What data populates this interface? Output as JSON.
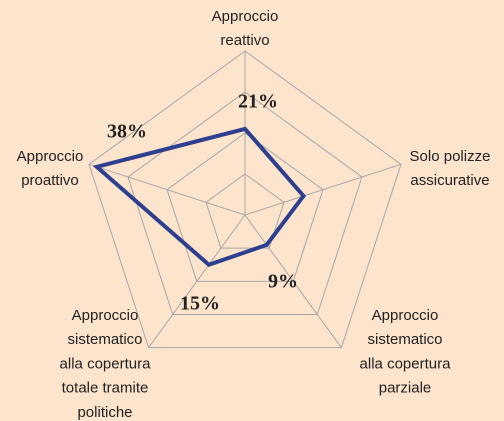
{
  "chart_data": {
    "type": "radar",
    "categories": [
      [
        "Approccio",
        "reattivo"
      ],
      [
        "Solo polizze",
        "assicurative"
      ],
      [
        "Approccio",
        "sistematico",
        "alla copertura",
        "parziale"
      ],
      [
        "Approccio",
        "sistematico",
        "alla copertura",
        "totale tramite",
        "politiche"
      ],
      [
        "Approccio",
        "proattivo"
      ]
    ],
    "values": [
      21,
      15,
      9,
      15,
      38
    ],
    "value_labels": [
      "21%",
      null,
      "9%",
      "15%",
      "38%"
    ],
    "color": "#2e3f8f",
    "ylim": [
      0,
      40
    ],
    "yticks": [
      10,
      20,
      30,
      40
    ],
    "grid": true
  }
}
